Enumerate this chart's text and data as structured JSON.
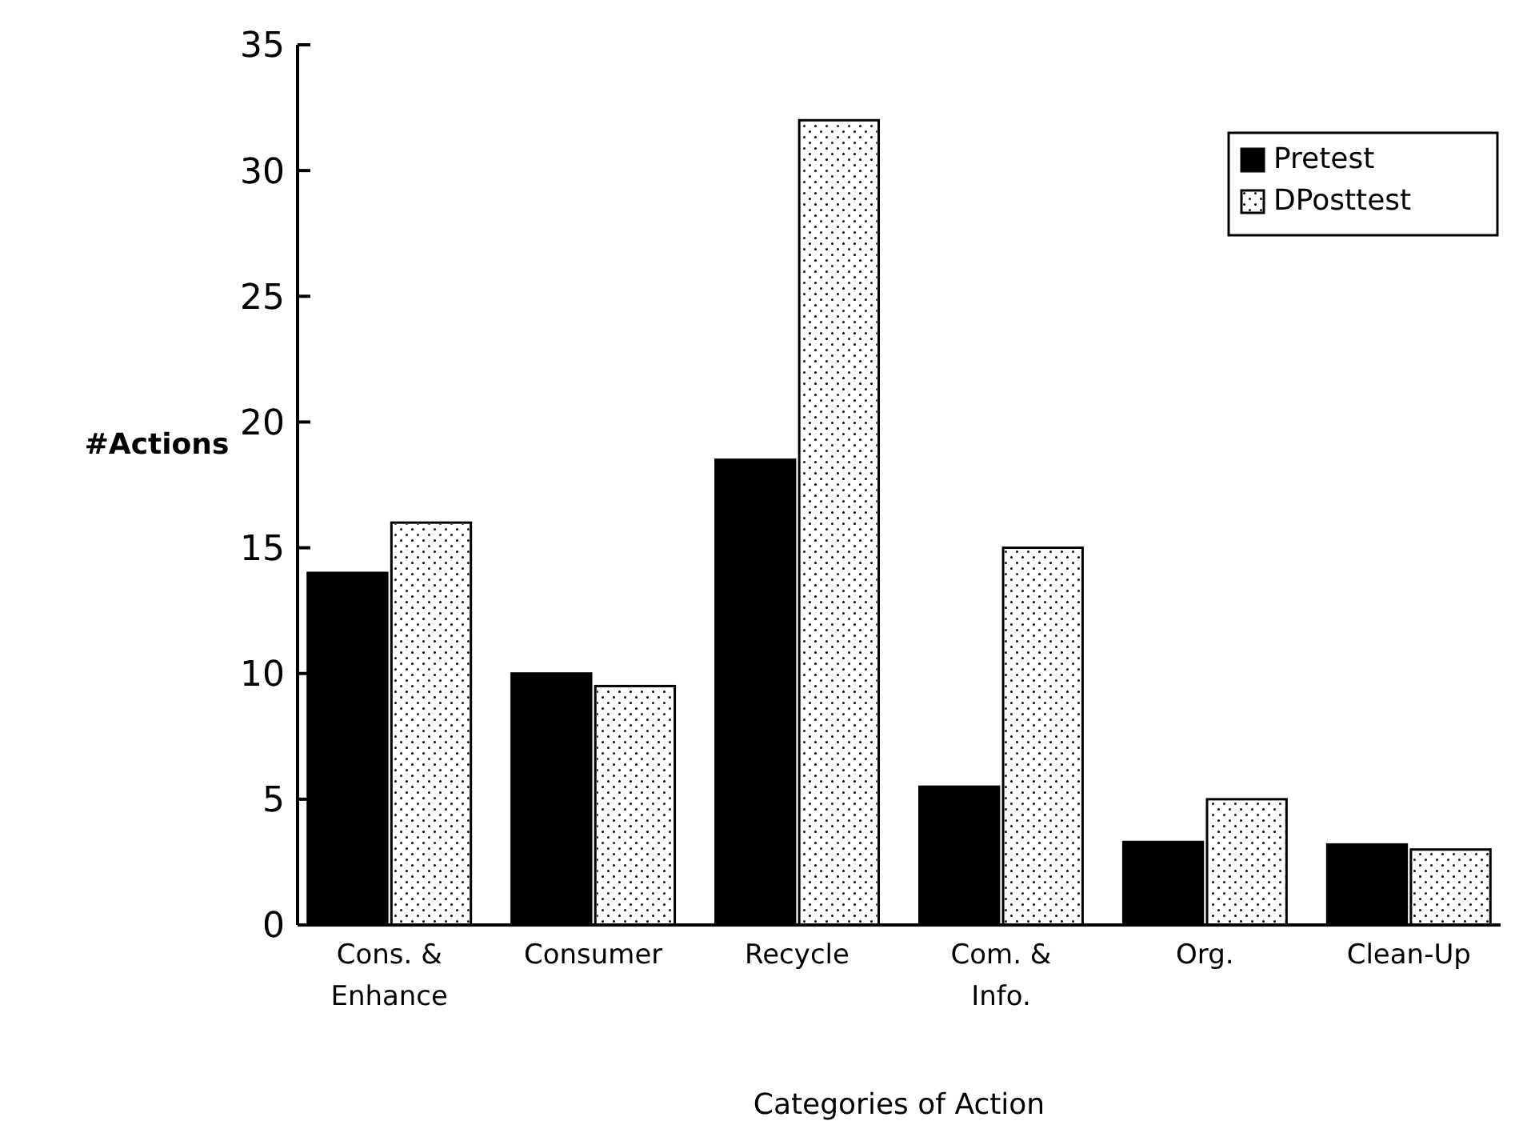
{
  "chart_data": {
    "type": "bar",
    "xlabel": "Categories of Action",
    "ylabel": "#Actions",
    "categories": [
      "Cons. &\nEnhance",
      "Consumer",
      "Recycle",
      "Com. &\nInfo.",
      "Org.",
      "Clean-Up"
    ],
    "series": [
      {
        "name": "Pretest",
        "color": "#000000",
        "values": [
          14,
          10,
          18.5,
          5.5,
          3.3,
          3.2
        ]
      },
      {
        "name": "DPosttest",
        "color": "#ffffff",
        "values": [
          16,
          9.5,
          32,
          15,
          5,
          3
        ]
      }
    ],
    "ylim": [
      0,
      35
    ],
    "yticks": [
      0,
      5,
      10,
      15,
      20,
      25,
      30,
      35
    ],
    "grid": false,
    "legend": "top right"
  }
}
